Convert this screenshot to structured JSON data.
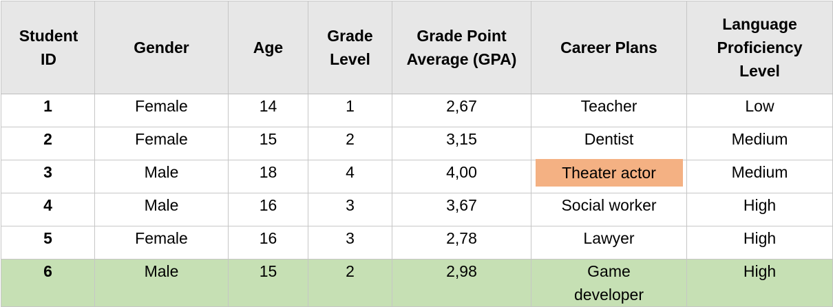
{
  "table": {
    "headers": [
      "Student ID",
      "Gender",
      "Age",
      "Grade Level",
      "Grade Point Average (GPA)",
      "Career Plans",
      "Language Proficiency Level"
    ],
    "rows": [
      [
        "1",
        "Female",
        "14",
        "1",
        "2,67",
        "Teacher",
        "Low"
      ],
      [
        "2",
        "Female",
        "15",
        "2",
        "3,15",
        "Dentist",
        "Medium"
      ],
      [
        "3",
        "Male",
        "18",
        "4",
        "4,00",
        "Theater actor",
        "Medium"
      ],
      [
        "4",
        "Male",
        "16",
        "3",
        "3,67",
        "Social worker",
        "High"
      ],
      [
        "5",
        "Female",
        "16",
        "3",
        "2,78",
        "Lawyer",
        "High"
      ],
      [
        "6",
        "Male",
        "15",
        "2",
        "2,98",
        "Game developer",
        "High"
      ]
    ],
    "colors": {
      "header_bg": "#e7e7e7",
      "highlight_cell": "#f4b183",
      "highlight_row": "#c6e0b4"
    }
  }
}
